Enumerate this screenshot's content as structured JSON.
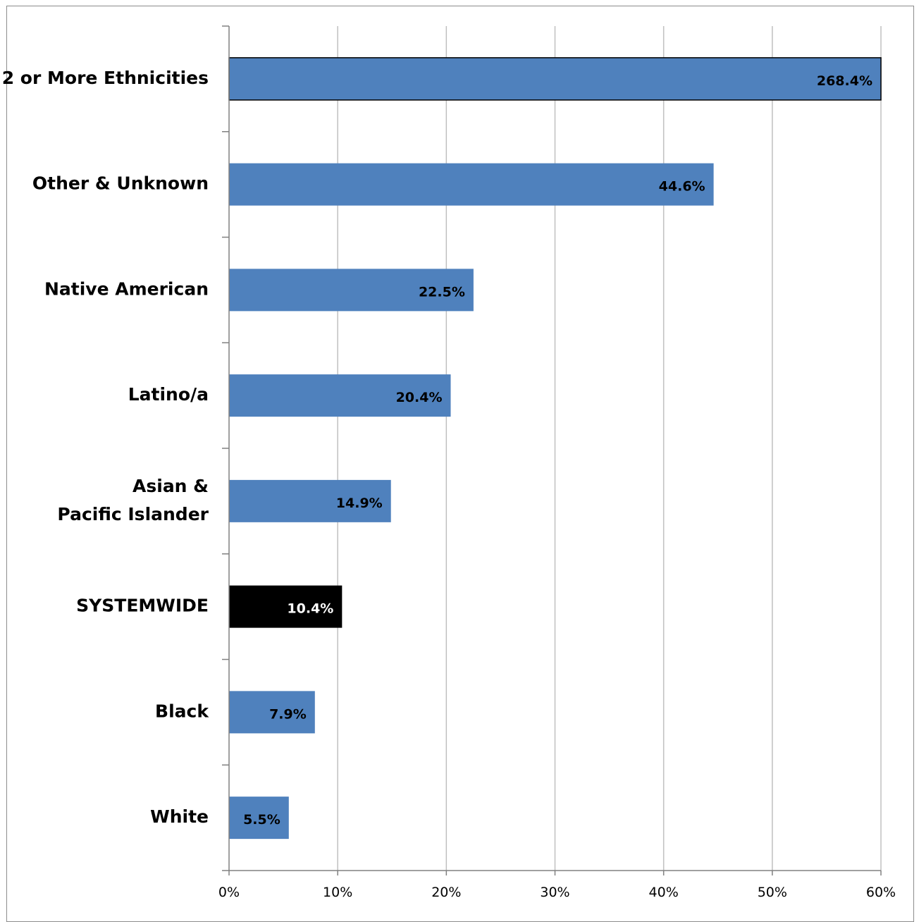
{
  "chart_data": {
    "type": "bar",
    "orientation": "horizontal",
    "title": "",
    "xlabel": "",
    "ylabel": "",
    "xlim": [
      0,
      60
    ],
    "x_ticks": [
      0,
      10,
      20,
      30,
      40,
      50,
      60
    ],
    "x_tick_labels": [
      "0%",
      "10%",
      "20%",
      "30%",
      "40%",
      "50%",
      "60%"
    ],
    "grid": "vertical",
    "categories": [
      [
        "2 or More Ethnicities"
      ],
      [
        "Other & Unknown"
      ],
      [
        "Native American"
      ],
      [
        "Latino/a"
      ],
      [
        "Asian &",
        "Pacific Islander"
      ],
      [
        "SYSTEMWIDE"
      ],
      [
        "Black"
      ],
      [
        "White"
      ]
    ],
    "values": [
      268.4,
      44.6,
      22.5,
      20.4,
      14.9,
      10.4,
      7.9,
      5.5
    ],
    "value_labels": [
      "268.4%",
      "44.6%",
      "22.5%",
      "20.4%",
      "14.9%",
      "10.4%",
      "7.9%",
      "5.5%"
    ],
    "bar_colors": [
      "#4f81bd",
      "#4f81bd",
      "#4f81bd",
      "#4f81bd",
      "#4f81bd",
      "#000000",
      "#4f81bd",
      "#4f81bd"
    ],
    "value_label_colors": [
      "#000000",
      "#000000",
      "#000000",
      "#000000",
      "#000000",
      "#ffffff",
      "#000000",
      "#000000"
    ],
    "truncated_bar_index": 0
  }
}
